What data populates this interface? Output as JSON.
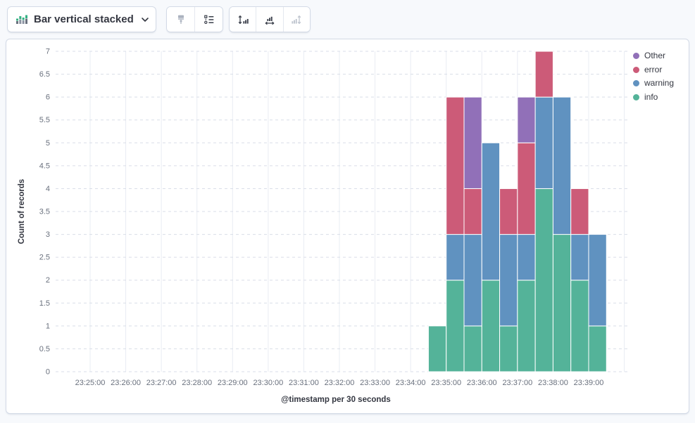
{
  "toolbar": {
    "chart_type_selector": {
      "label": "Bar vertical stacked",
      "icon": "stacked-bar-chart-icon"
    },
    "group1": {
      "buttons": [
        {
          "icon": "brush-icon",
          "disabled": true
        },
        {
          "icon": "legend-list-icon",
          "disabled": false
        }
      ]
    },
    "group2": {
      "buttons": [
        {
          "icon": "left-axis-icon",
          "disabled": false
        },
        {
          "icon": "bottom-axis-icon",
          "disabled": false
        },
        {
          "icon": "right-axis-icon",
          "disabled": true
        }
      ]
    }
  },
  "chart_data": {
    "type": "bar",
    "stacked": true,
    "xlabel": "@timestamp per 30 seconds",
    "ylabel": "Count of records",
    "ylim": [
      0,
      7
    ],
    "y_tick_step": 0.5,
    "grid": true,
    "legend_position": "top-right",
    "x_tick_labels": [
      "23:25:00",
      "23:26:00",
      "23:27:00",
      "23:28:00",
      "23:29:00",
      "23:30:00",
      "23:31:00",
      "23:32:00",
      "23:33:00",
      "23:34:00",
      "23:35:00",
      "23:36:00",
      "23:37:00",
      "23:38:00",
      "23:39:00"
    ],
    "x": [
      "23:34:30",
      "23:35:00",
      "23:35:30",
      "23:36:00",
      "23:36:30",
      "23:37:00",
      "23:37:30",
      "23:38:00",
      "23:38:30",
      "23:39:00"
    ],
    "bar_interval_seconds": 30,
    "stack_order": [
      "info",
      "warning",
      "error",
      "Other"
    ],
    "legend_order": [
      "Other",
      "error",
      "warning",
      "info"
    ],
    "series_colors": {
      "info": "#54B399",
      "warning": "#6092C0",
      "error": "#CC5B78",
      "Other": "#9170B8"
    },
    "series": [
      {
        "name": "info",
        "values": [
          1,
          2,
          1,
          2,
          1,
          2,
          4,
          3,
          2,
          1
        ]
      },
      {
        "name": "warning",
        "values": [
          0,
          1,
          2,
          3,
          2,
          1,
          2,
          3,
          1,
          2
        ]
      },
      {
        "name": "error",
        "values": [
          0,
          3,
          1,
          0,
          1,
          2,
          1,
          0,
          1,
          0
        ]
      },
      {
        "name": "Other",
        "values": [
          0,
          0,
          2,
          0,
          0,
          1,
          0,
          0,
          0,
          0
        ]
      }
    ]
  }
}
